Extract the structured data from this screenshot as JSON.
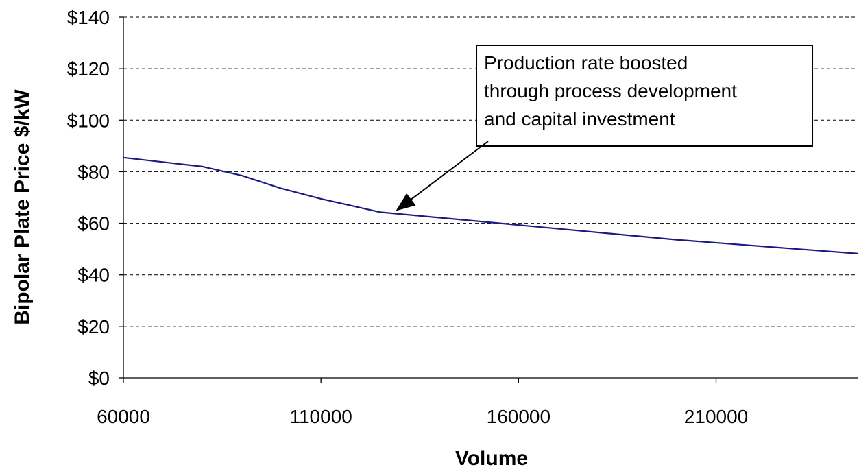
{
  "chart_data": {
    "type": "line",
    "title": "",
    "xlabel": "Volume",
    "ylabel": "Bipolar Plate Price $/kW",
    "xlim": [
      60000,
      246000
    ],
    "ylim": [
      0,
      140
    ],
    "x_ticks": [
      60000,
      110000,
      160000,
      210000
    ],
    "x_tick_labels": [
      "60000",
      "110000",
      "160000",
      "210000"
    ],
    "y_ticks": [
      0,
      20,
      40,
      60,
      80,
      100,
      120,
      140
    ],
    "y_tick_labels": [
      "$0",
      "$20",
      "$40",
      "$60",
      "$80",
      "$100",
      "$120",
      "$140"
    ],
    "grid": "horizontal dashed",
    "series": [
      {
        "color": "#1a1a80",
        "x": [
          60000,
          80000,
          90000,
          100000,
          110000,
          125000,
          200000,
          246000
        ],
        "values": [
          85.5,
          82,
          78.5,
          73.5,
          69.5,
          64.3,
          53.6,
          48.2
        ]
      }
    ],
    "annotations": [
      {
        "lines": [
          "Production rate boosted",
          "through process development",
          "and capital investment"
        ],
        "arrow_to": [
          130000,
          64
        ]
      }
    ]
  }
}
